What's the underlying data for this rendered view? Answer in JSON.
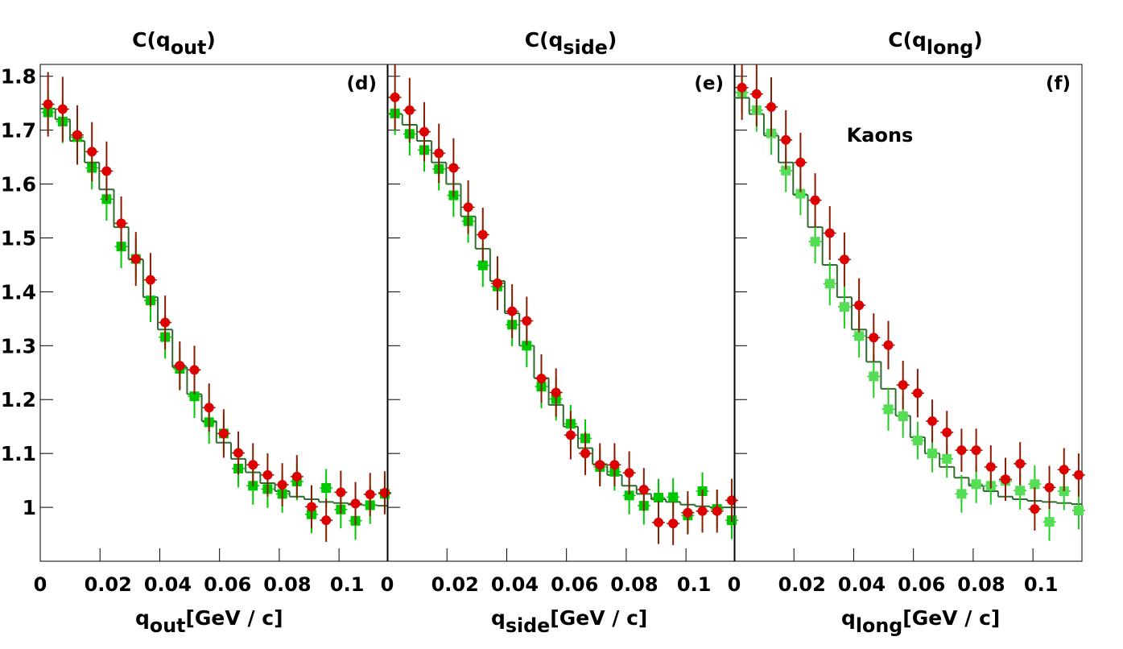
{
  "chart_data": [
    {
      "type": "scatter",
      "title": "C(q",
      "title_sub": "out",
      "title_end": ")",
      "panel_label": "(d)",
      "xlabel": "q",
      "xlabel_sub": "out",
      "xlabel_end": "[GeV / c]",
      "xlim": [
        0,
        0.1164
      ],
      "xticks": [
        0,
        0.02,
        0.04,
        0.06,
        0.08,
        0.1
      ],
      "ylim": [
        0.9,
        1.822
      ],
      "yticks": [
        1,
        1.1,
        1.2,
        1.3,
        1.4,
        1.5,
        1.6,
        1.7,
        1.8
      ],
      "ytick_labels": true,
      "x": [
        0.0026,
        0.0075,
        0.0124,
        0.0173,
        0.0222,
        0.0271,
        0.032,
        0.0369,
        0.0418,
        0.0467,
        0.0516,
        0.0565,
        0.0614,
        0.0663,
        0.0712,
        0.0761,
        0.081,
        0.0859,
        0.0908,
        0.0957,
        0.1006,
        0.1055,
        0.1104,
        0.1153
      ],
      "series": [
        {
          "style": "step",
          "color": "#2f6a2f",
          "values": [
            1.74,
            1.72,
            1.68,
            1.64,
            1.59,
            1.52,
            1.46,
            1.39,
            1.33,
            1.26,
            1.21,
            1.16,
            1.12,
            1.09,
            1.065,
            1.045,
            1.03,
            1.02,
            1.015,
            1.01,
            1.008,
            1.005,
            1.004,
            1.003
          ]
        },
        {
          "style": "square",
          "color": "#00c800",
          "error_color": "#00c800",
          "values": [
            1.733,
            1.716,
            1.687,
            1.63,
            1.572,
            1.484,
            1.461,
            1.384,
            1.316,
            1.257,
            1.206,
            1.158,
            1.137,
            1.072,
            1.04,
            1.034,
            1.025,
            1.048,
            0.987,
            1.036,
            0.996,
            0.975,
            1.004,
            1.025
          ],
          "errors": [
            0.04,
            0.04,
            0.04,
            0.04,
            0.04,
            0.04,
            0.04,
            0.04,
            0.04,
            0.04,
            0.04,
            0.04,
            0.035,
            0.035,
            0.035,
            0.035,
            0.035,
            0.035,
            0.035,
            0.035,
            0.035,
            0.035,
            0.035,
            0.035
          ]
        },
        {
          "style": "circle",
          "color": "#dd0000",
          "error_color": "#8a1a00",
          "values": [
            1.748,
            1.739,
            1.691,
            1.66,
            1.624,
            1.527,
            1.461,
            1.422,
            1.343,
            1.263,
            1.255,
            1.185,
            1.137,
            1.101,
            1.079,
            1.06,
            1.042,
            1.057,
            1.001,
            0.976,
            1.028,
            1.007,
            1.024,
            1.027
          ],
          "errors": [
            0.06,
            0.06,
            0.055,
            0.055,
            0.055,
            0.05,
            0.05,
            0.05,
            0.05,
            0.045,
            0.045,
            0.045,
            0.045,
            0.04,
            0.04,
            0.04,
            0.04,
            0.04,
            0.04,
            0.04,
            0.04,
            0.04,
            0.04,
            0.04
          ]
        }
      ]
    },
    {
      "type": "scatter",
      "title": "C(q",
      "title_sub": "side",
      "title_end": ")",
      "panel_label": "(e)",
      "xlabel": "q",
      "xlabel_sub": "side",
      "xlabel_end": "[GeV / c]",
      "xlim": [
        0,
        0.1164
      ],
      "xticks": [
        0,
        0.02,
        0.04,
        0.06,
        0.08,
        0.1
      ],
      "ylim": [
        0.9,
        1.822
      ],
      "yticks": [
        1,
        1.1,
        1.2,
        1.3,
        1.4,
        1.5,
        1.6,
        1.7,
        1.8
      ],
      "ytick_labels": false,
      "x": [
        0.0026,
        0.0075,
        0.0124,
        0.0173,
        0.0222,
        0.0271,
        0.032,
        0.0369,
        0.0418,
        0.0467,
        0.0516,
        0.0565,
        0.0614,
        0.0663,
        0.0712,
        0.0761,
        0.081,
        0.0859,
        0.0908,
        0.0957,
        0.1006,
        0.1055,
        0.1104,
        0.1153
      ],
      "series": [
        {
          "style": "step",
          "color": "#2f6a2f",
          "values": [
            1.73,
            1.71,
            1.68,
            1.64,
            1.6,
            1.54,
            1.48,
            1.42,
            1.36,
            1.3,
            1.24,
            1.19,
            1.15,
            1.11,
            1.08,
            1.06,
            1.04,
            1.025,
            1.015,
            1.01,
            1.005,
            1.002,
            1.0,
            1.0
          ]
        },
        {
          "style": "square",
          "color": "#00c800",
          "error_color": "#00c800",
          "values": [
            1.731,
            1.693,
            1.663,
            1.628,
            1.579,
            1.531,
            1.449,
            1.41,
            1.339,
            1.3,
            1.224,
            1.201,
            1.155,
            1.128,
            1.075,
            1.066,
            1.022,
            1.003,
            1.018,
            1.019,
            0.985,
            1.03,
            0.997,
            0.976
          ],
          "errors": [
            0.04,
            0.04,
            0.04,
            0.04,
            0.04,
            0.04,
            0.04,
            0.04,
            0.04,
            0.04,
            0.04,
            0.04,
            0.035,
            0.035,
            0.035,
            0.035,
            0.035,
            0.035,
            0.035,
            0.035,
            0.035,
            0.035,
            0.035,
            0.035
          ]
        },
        {
          "style": "circle",
          "color": "#dd0000",
          "error_color": "#8a1a00",
          "values": [
            1.761,
            1.737,
            1.697,
            1.657,
            1.63,
            1.557,
            1.506,
            1.416,
            1.364,
            1.346,
            1.239,
            1.213,
            1.134,
            1.1,
            1.079,
            1.079,
            1.064,
            1.033,
            0.972,
            0.97,
            0.99,
            0.993,
            0.993,
            1.013
          ],
          "errors": [
            0.06,
            0.06,
            0.055,
            0.055,
            0.055,
            0.05,
            0.05,
            0.05,
            0.05,
            0.045,
            0.045,
            0.045,
            0.045,
            0.04,
            0.04,
            0.04,
            0.04,
            0.04,
            0.04,
            0.04,
            0.04,
            0.04,
            0.04,
            0.04
          ]
        }
      ]
    },
    {
      "type": "scatter",
      "title": "C(q",
      "title_sub": "long",
      "title_end": ")",
      "panel_label": "(f)",
      "annotation": "Kaons",
      "xlabel": "q",
      "xlabel_sub": "long",
      "xlabel_end": "[GeV / c]",
      "xlim": [
        0,
        0.1164
      ],
      "xticks": [
        0,
        0.02,
        0.04,
        0.06,
        0.08,
        0.1
      ],
      "ylim": [
        0.9,
        1.822
      ],
      "yticks": [
        1,
        1.1,
        1.2,
        1.3,
        1.4,
        1.5,
        1.6,
        1.7,
        1.8
      ],
      "ytick_labels": false,
      "x": [
        0.0026,
        0.0075,
        0.0124,
        0.0173,
        0.0222,
        0.0271,
        0.032,
        0.0369,
        0.0418,
        0.0467,
        0.0516,
        0.0565,
        0.0614,
        0.0663,
        0.0712,
        0.0761,
        0.081,
        0.0859,
        0.0908,
        0.0957,
        0.1006,
        0.1055,
        0.1104,
        0.1153
      ],
      "series": [
        {
          "style": "step",
          "color": "#2f6a2f",
          "values": [
            1.76,
            1.73,
            1.69,
            1.64,
            1.58,
            1.52,
            1.45,
            1.39,
            1.33,
            1.27,
            1.22,
            1.17,
            1.13,
            1.1,
            1.075,
            1.055,
            1.04,
            1.03,
            1.02,
            1.015,
            1.012,
            1.01,
            1.008,
            1.006
          ]
        },
        {
          "style": "square",
          "color": "#55dd55",
          "error_color": "#22cc22",
          "values": [
            1.77,
            1.737,
            1.694,
            1.625,
            1.582,
            1.493,
            1.415,
            1.372,
            1.318,
            1.243,
            1.182,
            1.169,
            1.124,
            1.1,
            1.09,
            1.025,
            1.043,
            1.04,
            1.049,
            1.031,
            1.043,
            0.973,
            1.03,
            0.994
          ],
          "errors": [
            0.04,
            0.04,
            0.04,
            0.04,
            0.04,
            0.04,
            0.04,
            0.04,
            0.04,
            0.04,
            0.04,
            0.04,
            0.035,
            0.035,
            0.035,
            0.035,
            0.035,
            0.035,
            0.035,
            0.035,
            0.035,
            0.035,
            0.035,
            0.035
          ]
        },
        {
          "style": "circle",
          "color": "#dd0000",
          "error_color": "#8a1a00",
          "values": [
            1.779,
            1.767,
            1.743,
            1.682,
            1.64,
            1.57,
            1.509,
            1.46,
            1.375,
            1.315,
            1.301,
            1.227,
            1.212,
            1.16,
            1.139,
            1.106,
            1.106,
            1.075,
            1.052,
            1.081,
            0.997,
            1.037,
            1.07,
            1.06
          ],
          "errors": [
            0.06,
            0.06,
            0.055,
            0.055,
            0.055,
            0.05,
            0.05,
            0.05,
            0.05,
            0.045,
            0.045,
            0.045,
            0.045,
            0.04,
            0.04,
            0.04,
            0.04,
            0.04,
            0.04,
            0.04,
            0.04,
            0.04,
            0.04,
            0.04
          ]
        }
      ]
    }
  ]
}
